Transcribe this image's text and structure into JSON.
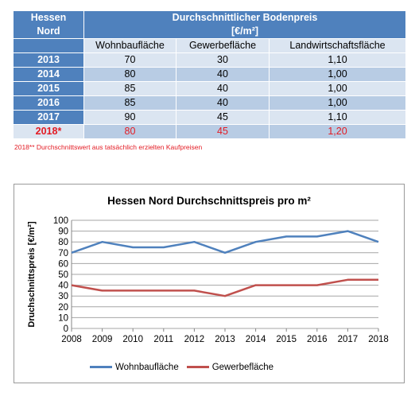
{
  "table": {
    "region_header": [
      "Hessen",
      "Nord"
    ],
    "main_header": [
      "Durchschnittlicher Bodenpreis",
      "[€/m²]"
    ],
    "columns": [
      "Wohnbaufläche",
      "Gewerbefläche",
      "Landwirtschaftsfläche"
    ],
    "rows": [
      {
        "year": "2013",
        "values": [
          "70",
          "30",
          "1,10"
        ]
      },
      {
        "year": "2014",
        "values": [
          "80",
          "40",
          "1,00"
        ]
      },
      {
        "year": "2015",
        "values": [
          "85",
          "40",
          "1,00"
        ]
      },
      {
        "year": "2016",
        "values": [
          "85",
          "40",
          "1,00"
        ]
      },
      {
        "year": "2017",
        "values": [
          "90",
          "45",
          "1,10"
        ]
      },
      {
        "year": "2018*",
        "values": [
          "80",
          "45",
          "1,20"
        ]
      }
    ],
    "highlight_color": "#e31b23",
    "header_color": "#4f81bd"
  },
  "footnote": "2018** Durchschnittswert aus tatsächlich erzielten Kaufpreisen",
  "chart_data": {
    "type": "line",
    "title": "Hessen Nord Durchschnittspreis pro m²",
    "xlabel": "",
    "ylabel": "Druchschnittspreis [€/m²]",
    "x": [
      2008,
      2009,
      2010,
      2011,
      2012,
      2013,
      2014,
      2015,
      2016,
      2017,
      2018
    ],
    "ylim": [
      0,
      100
    ],
    "yticks": [
      0,
      10,
      20,
      30,
      40,
      50,
      60,
      70,
      80,
      90,
      100
    ],
    "grid": true,
    "legend": "bottom",
    "series": [
      {
        "name": "Wohnbaufläche",
        "color": "#4f81bd",
        "values": [
          70,
          80,
          75,
          75,
          80,
          70,
          80,
          85,
          85,
          90,
          80
        ]
      },
      {
        "name": "Gewerbefläche",
        "color": "#c0504d",
        "values": [
          40,
          35,
          35,
          35,
          35,
          30,
          40,
          40,
          40,
          45,
          45
        ]
      }
    ]
  }
}
